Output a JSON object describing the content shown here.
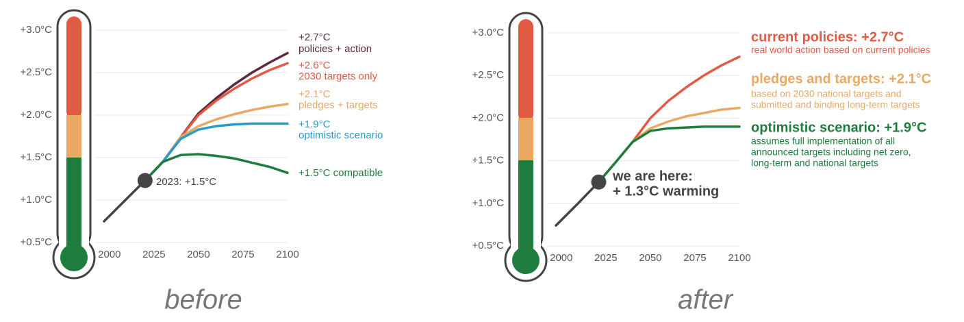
{
  "chart_data": [
    {
      "type": "line",
      "caption": "before",
      "annotation": [
        "2023: +1.5°C"
      ],
      "xlim": [
        1992,
        2100
      ],
      "ylim": [
        0.5,
        3.0
      ],
      "xticks": [
        2000,
        2025,
        2050,
        2075,
        2100
      ],
      "yticks": [
        {
          "value": 0.5,
          "label": "+0.5°C"
        },
        {
          "value": 1.0,
          "label": "+1.0°C"
        },
        {
          "value": 1.5,
          "label": "+1.5°C"
        },
        {
          "value": 2.0,
          "label": "+2.0°C"
        },
        {
          "value": 2.5,
          "label": "+2.5°C"
        },
        {
          "value": 3.0,
          "label": "+3.0°C"
        }
      ],
      "grid": true,
      "series": [
        {
          "color": "#444444",
          "x": [
            1997,
            2008,
            2020
          ],
          "values": [
            0.75,
            0.98,
            1.23
          ]
        },
        {
          "name": "policies + action",
          "color": "#5c2a40",
          "x": [
            2020,
            2030,
            2040,
            2050,
            2060,
            2070,
            2080,
            2090,
            2100
          ],
          "values": [
            1.23,
            1.45,
            1.74,
            2.02,
            2.2,
            2.36,
            2.5,
            2.62,
            2.73
          ],
          "value_labels": [
            null,
            null,
            null,
            null,
            null,
            null,
            null,
            null,
            "+2.7°C"
          ]
        },
        {
          "name": "2030 targets only",
          "color": "#e05a44",
          "x": [
            2020,
            2030,
            2040,
            2050,
            2060,
            2070,
            2080,
            2090,
            2100
          ],
          "values": [
            1.23,
            1.45,
            1.74,
            2.0,
            2.17,
            2.31,
            2.43,
            2.53,
            2.61
          ],
          "value_labels": [
            null,
            null,
            null,
            null,
            null,
            null,
            null,
            null,
            "+2.6°C"
          ]
        },
        {
          "name": "pledges + targets",
          "color": "#eaa862",
          "x": [
            2020,
            2030,
            2040,
            2050,
            2060,
            2070,
            2080,
            2090,
            2100
          ],
          "values": [
            1.23,
            1.45,
            1.74,
            1.87,
            1.95,
            2.01,
            2.06,
            2.1,
            2.13
          ],
          "value_labels": [
            null,
            null,
            null,
            null,
            null,
            null,
            null,
            null,
            "+2.1°C"
          ]
        },
        {
          "name": "optimistic scenario",
          "color": "#2a9bc9",
          "x": [
            2020,
            2030,
            2040,
            2050,
            2060,
            2070,
            2080,
            2090,
            2100
          ],
          "values": [
            1.23,
            1.45,
            1.72,
            1.83,
            1.87,
            1.89,
            1.9,
            1.9,
            1.9
          ],
          "value_labels": [
            null,
            null,
            null,
            null,
            null,
            null,
            null,
            null,
            "+1.9°C"
          ]
        },
        {
          "name": "+1.5°C compatible",
          "color": "#1e7d3e",
          "x": [
            2020,
            2030,
            2040,
            2050,
            2060,
            2070,
            2080,
            2090,
            2100
          ],
          "values": [
            1.23,
            1.45,
            1.53,
            1.54,
            1.52,
            1.49,
            1.44,
            1.39,
            1.32
          ]
        }
      ]
    },
    {
      "type": "line",
      "caption": "after",
      "annotation": [
        "we are here:",
        "+ 1.3°C warming"
      ],
      "xlim": [
        1992,
        2100
      ],
      "ylim": [
        0.5,
        3.0
      ],
      "xticks": [
        2000,
        2025,
        2050,
        2075,
        2100
      ],
      "yticks": [
        {
          "value": 0.5,
          "label": "+0.5°C"
        },
        {
          "value": 1.0,
          "label": "+1.0°C"
        },
        {
          "value": 1.5,
          "label": "+1.5°C"
        },
        {
          "value": 2.0,
          "label": "+2.0°C"
        },
        {
          "value": 2.5,
          "label": "+2.5°C"
        },
        {
          "value": 3.0,
          "label": "+3.0°C"
        }
      ],
      "grid": true,
      "series": [
        {
          "color": "#444444",
          "x": [
            1997,
            2009,
            2021
          ],
          "values": [
            0.74,
            0.99,
            1.25
          ]
        },
        {
          "name": "current policies: +2.7°C",
          "description": [
            "real world action based on current policies"
          ],
          "color": "#e05a44",
          "x": [
            2021,
            2030,
            2040,
            2050,
            2060,
            2070,
            2080,
            2090,
            2100
          ],
          "values": [
            1.25,
            1.47,
            1.72,
            2.0,
            2.2,
            2.36,
            2.5,
            2.62,
            2.72
          ]
        },
        {
          "name": "pledges and targets: +2.1°C",
          "description": [
            "based on 2030 national targets and",
            "submitted and binding long-term targets"
          ],
          "color": "#eaa862",
          "x": [
            2021,
            2030,
            2040,
            2050,
            2060,
            2070,
            2080,
            2090,
            2100
          ],
          "values": [
            1.25,
            1.47,
            1.72,
            1.88,
            1.96,
            2.02,
            2.06,
            2.1,
            2.12
          ]
        },
        {
          "name": "optimistic scenario: +1.9°C",
          "description": [
            "assumes full implementation of all",
            "announced targets including net zero,",
            "long-term and national targets"
          ],
          "color": "#1e7d3e",
          "x": [
            2021,
            2030,
            2040,
            2050,
            2060,
            2070,
            2080,
            2090,
            2100
          ],
          "values": [
            1.25,
            1.47,
            1.72,
            1.85,
            1.88,
            1.89,
            1.9,
            1.9,
            1.9
          ]
        }
      ]
    }
  ]
}
